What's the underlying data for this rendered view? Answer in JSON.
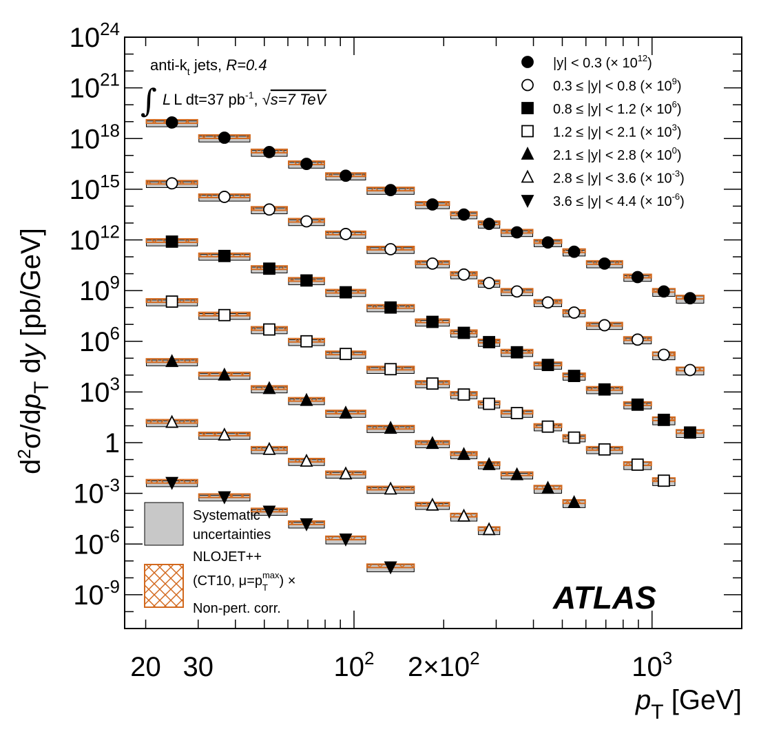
{
  "chart_data": {
    "type": "scatter",
    "experiment": "ATLAS",
    "annotation_line1": "anti-k",
    "annotation_line1_sub": "t",
    "annotation_line1_rest": "jets,",
    "annotation_R": "R=0.4",
    "annotation_line2_lumi": "L dt=37 pb",
    "annotation_line2_lumi_sup": "-1",
    "annotation_line2_energy": "s=7 TeV",
    "xlabel_main": "p",
    "xlabel_sub": "T",
    "xlabel_unit": "[GeV]",
    "ylabel": "d²σ/dp_T dy [pb/GeV]",
    "xscale": "log",
    "yscale": "log",
    "xlim": [
      17,
      2000
    ],
    "ylim_log10": [
      -11,
      24
    ],
    "x_tick_labels": [
      {
        "x": 20,
        "text": "20"
      },
      {
        "x": 30,
        "text": "30"
      },
      {
        "x": 100,
        "base": "10",
        "exp": "2"
      },
      {
        "x": 200,
        "base": "2×10",
        "exp": "2"
      },
      {
        "x": 1000,
        "base": "10",
        "exp": "3"
      }
    ],
    "y_tick_labels": [
      {
        "log10": 24,
        "base": "10",
        "exp": "24"
      },
      {
        "log10": 21,
        "base": "10",
        "exp": "21"
      },
      {
        "log10": 18,
        "base": "10",
        "exp": "18"
      },
      {
        "log10": 15,
        "base": "10",
        "exp": "15"
      },
      {
        "log10": 12,
        "base": "10",
        "exp": "12"
      },
      {
        "log10": 9,
        "base": "10",
        "exp": "9"
      },
      {
        "log10": 6,
        "base": "10",
        "exp": "6"
      },
      {
        "log10": 3,
        "base": "10",
        "exp": "3"
      },
      {
        "log10": 0,
        "base": "1",
        "exp": ""
      },
      {
        "log10": -3,
        "base": "10",
        "exp": "-3"
      },
      {
        "log10": -6,
        "base": "10",
        "exp": "-6"
      },
      {
        "log10": -9,
        "base": "10",
        "exp": "-9"
      }
    ],
    "bin_edges": [
      20,
      30,
      45,
      60,
      80,
      110,
      160,
      210,
      260,
      310,
      400,
      500,
      600,
      800,
      1000,
      1200,
      1500
    ],
    "series": [
      {
        "name": "|y| < 0.3 (× 10",
        "exp": "12",
        "marker": "circle",
        "filled": true,
        "first_bin": 0,
        "last_bin": 15,
        "log10_y": [
          18.95,
          18.05,
          17.2,
          16.5,
          15.8,
          14.95,
          14.1,
          13.5,
          12.95,
          12.45,
          11.85,
          11.3,
          10.6,
          9.8,
          8.95,
          8.55
        ]
      },
      {
        "name": "0.3 ≤ |y| < 0.8 (× 10",
        "exp": "9",
        "marker": "circle",
        "filled": false,
        "first_bin": 0,
        "last_bin": 15,
        "log10_y": [
          15.35,
          14.55,
          13.8,
          13.1,
          12.35,
          11.45,
          10.6,
          9.95,
          9.45,
          8.95,
          8.3,
          7.7,
          6.95,
          6.1,
          5.2,
          4.3
        ]
      },
      {
        "name": "0.8 ≤ |y| < 1.2 (× 10",
        "exp": "6",
        "marker": "square",
        "filled": true,
        "first_bin": 0,
        "last_bin": 15,
        "log10_y": [
          11.9,
          11.05,
          10.3,
          9.6,
          8.9,
          8.0,
          7.15,
          6.5,
          5.95,
          5.35,
          4.6,
          3.95,
          3.15,
          2.25,
          1.35,
          0.6
        ]
      },
      {
        "name": "1.2 ≤ |y| < 2.1 (× 10",
        "exp": "3",
        "marker": "square",
        "filled": false,
        "first_bin": 0,
        "last_bin": 14,
        "log10_y": [
          8.35,
          7.55,
          6.7,
          6.0,
          5.25,
          4.35,
          3.5,
          2.85,
          2.3,
          1.75,
          0.95,
          0.3,
          -0.4,
          -1.3,
          -2.25
        ]
      },
      {
        "name": "2.1 ≤ |y| < 2.8 (× 10",
        "exp": "0",
        "marker": "triangle-up",
        "filled": true,
        "first_bin": 0,
        "last_bin": 11,
        "log10_y": [
          4.8,
          4.0,
          3.2,
          2.5,
          1.75,
          0.85,
          -0.05,
          -0.7,
          -1.3,
          -1.9,
          -2.7,
          -3.55
        ]
      },
      {
        "name": "2.8 ≤ |y| < 3.6 (× 10",
        "exp": "-3",
        "marker": "triangle-up",
        "filled": false,
        "first_bin": 0,
        "last_bin": 8,
        "log10_y": [
          1.2,
          0.45,
          -0.4,
          -1.1,
          -1.85,
          -2.75,
          -3.7,
          -4.35,
          -5.15
        ]
      },
      {
        "name": "3.6 ≤ |y| < 4.4 (× 10",
        "exp": "-6",
        "marker": "triangle-down",
        "filled": true,
        "first_bin": 0,
        "last_bin": 5,
        "log10_y": [
          -2.35,
          -3.2,
          -4.05,
          -4.8,
          -5.7,
          -7.35
        ]
      }
    ],
    "legend_box_systematic_line1": "Systematic",
    "legend_box_systematic_line2": "uncertainties",
    "legend_box_nlo_line1": "NLOJET++",
    "legend_box_nlo_line2": "(CT10, μ=p",
    "legend_box_nlo_line2_sup": "max",
    "legend_box_nlo_line2_sub": "T",
    "legend_box_nlo_line2_end": ") ×",
    "legend_box_nlo_line3": "Non-pert. corr.",
    "legend_placement": "top-right",
    "colors": {
      "theory": "#d2691e",
      "systematic_fill": "#c8c8c8",
      "marker": "#000000"
    },
    "grid": false
  }
}
